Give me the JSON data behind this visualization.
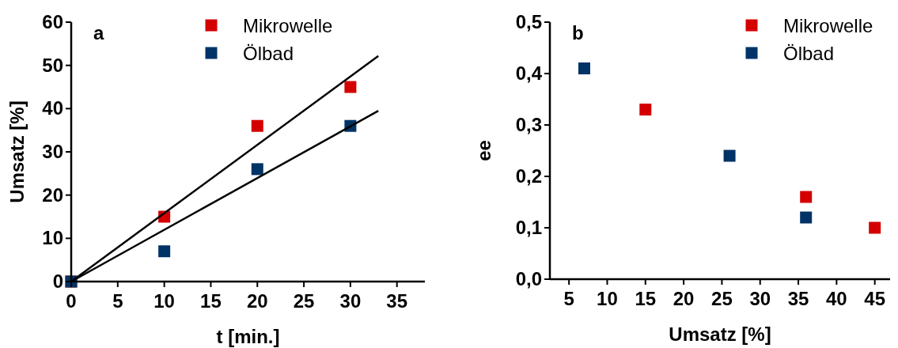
{
  "chart_data": [
    {
      "type": "scatter",
      "xlabel": "t [min.]",
      "ylabel": "Umsatz [%]",
      "annotations": [
        "a"
      ],
      "marker": "square",
      "legend": "top right",
      "grid": false,
      "xlim": [
        0,
        38
      ],
      "xticks": [
        0,
        5,
        10,
        15,
        20,
        25,
        30,
        35
      ],
      "ylim": [
        0,
        60
      ],
      "yticks": [
        0,
        10,
        20,
        30,
        40,
        50,
        60
      ],
      "series": [
        {
          "name": "Mikrowelle",
          "color": "#d40000",
          "x": [
            0,
            10,
            20,
            30
          ],
          "values": [
            0,
            15,
            36,
            45
          ]
        },
        {
          "name": "Ölbad",
          "color": "#003366",
          "x": [
            0,
            10,
            20,
            30
          ],
          "values": [
            0,
            7,
            26,
            36
          ]
        },
        {
          "type": "line",
          "color": "#000000",
          "marker": "none",
          "x": [
            0,
            33
          ],
          "values": [
            0,
            52.2
          ]
        },
        {
          "type": "line",
          "color": "#000000",
          "marker": "none",
          "x": [
            0,
            33
          ],
          "values": [
            0,
            39.5
          ]
        }
      ]
    },
    {
      "type": "scatter",
      "xlabel": "Umsatz [%]",
      "ylabel": "ee",
      "annotations": [
        "b"
      ],
      "marker": "square",
      "legend": "top right",
      "grid": false,
      "xlim": [
        2.5,
        47
      ],
      "xticks": [
        5,
        10,
        15,
        20,
        25,
        30,
        35,
        40,
        45
      ],
      "ylim": [
        0,
        0.5
      ],
      "yticks": [
        {
          "value": 0,
          "label": "0,0"
        },
        {
          "value": 0.1,
          "label": "0,1"
        },
        {
          "value": 0.2,
          "label": "0,2"
        },
        {
          "value": 0.3,
          "label": "0,3"
        },
        {
          "value": 0.4,
          "label": "0,4"
        },
        {
          "value": 0.5,
          "label": "0,5"
        }
      ],
      "series": [
        {
          "name": "Mikrowelle",
          "color": "#d40000",
          "x": [
            15,
            36,
            45
          ],
          "values": [
            0.33,
            0.16,
            0.1
          ]
        },
        {
          "name": "Ölbad",
          "color": "#003366",
          "x": [
            7,
            26,
            36
          ],
          "values": [
            0.41,
            0.24,
            0.12
          ]
        }
      ]
    }
  ]
}
